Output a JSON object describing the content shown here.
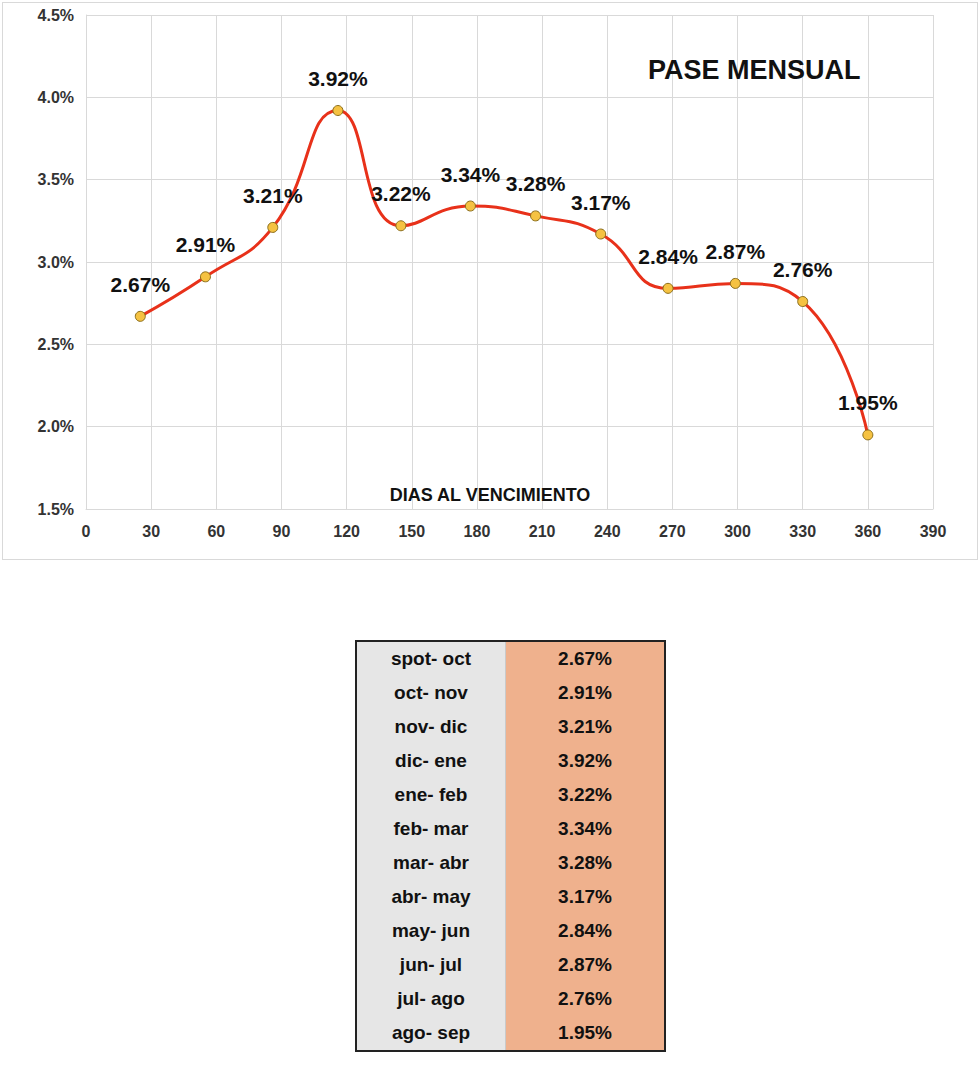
{
  "chart_data": {
    "type": "line",
    "title": "PASE MENSUAL",
    "x_label": "DIAS AL VENCIMIENTO",
    "x": [
      25,
      55,
      86,
      116,
      145,
      177,
      207,
      237,
      268,
      299,
      330,
      360
    ],
    "values": [
      2.67,
      2.91,
      3.21,
      3.92,
      3.22,
      3.34,
      3.28,
      3.17,
      2.84,
      2.87,
      2.76,
      1.95
    ],
    "value_labels": [
      "2.67%",
      "2.91%",
      "3.21%",
      "3.92%",
      "3.22%",
      "3.34%",
      "3.28%",
      "3.17%",
      "2.84%",
      "2.87%",
      "2.76%",
      "1.95%"
    ],
    "color": "#e8311a",
    "marker": "circle",
    "line_style": "solid",
    "xlim": [
      0,
      390
    ],
    "xticks": [
      0,
      30,
      60,
      90,
      120,
      150,
      180,
      210,
      240,
      270,
      300,
      330,
      360,
      390
    ],
    "ylim": [
      1.5,
      4.5
    ],
    "yticks": [
      {
        "value": 1.5,
        "label": "1.5%"
      },
      {
        "value": 2.0,
        "label": "2.0%"
      },
      {
        "value": 2.5,
        "label": "2.5%"
      },
      {
        "value": 3.0,
        "label": "3.0%"
      },
      {
        "value": 3.5,
        "label": "3.5%"
      },
      {
        "value": 4.0,
        "label": "4.0%"
      },
      {
        "value": 4.5,
        "label": "4.5%"
      }
    ],
    "grid": true,
    "data_labels": true
  },
  "table": {
    "rows": [
      [
        "spot- oct",
        "2.67%"
      ],
      [
        "oct- nov",
        "2.91%"
      ],
      [
        "nov- dic",
        "3.21%"
      ],
      [
        "dic- ene",
        "3.92%"
      ],
      [
        "ene- feb",
        "3.22%"
      ],
      [
        "feb- mar",
        "3.34%"
      ],
      [
        "mar- abr",
        "3.28%"
      ],
      [
        "abr- may",
        "3.17%"
      ],
      [
        "may- jun",
        "2.84%"
      ],
      [
        "jun- jul",
        "2.87%"
      ],
      [
        "jul- ago",
        "2.76%"
      ],
      [
        "ago- sep",
        "1.95%"
      ]
    ]
  }
}
